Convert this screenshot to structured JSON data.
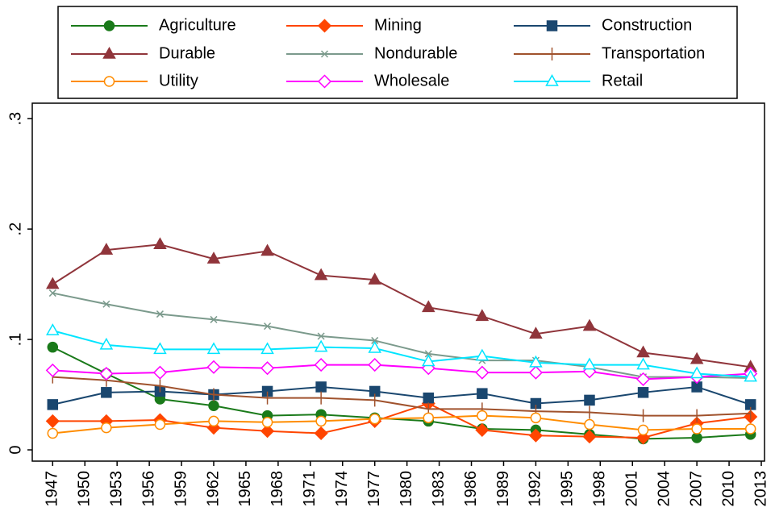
{
  "chart_data": {
    "type": "line",
    "x": [
      1947,
      1952,
      1957,
      1962,
      1967,
      1972,
      1977,
      1982,
      1987,
      1992,
      1997,
      2002,
      2007,
      2012
    ],
    "xlim": [
      1945.1,
      2013.3
    ],
    "xticks": [
      1947,
      1950,
      1953,
      1956,
      1959,
      1962,
      1965,
      1968,
      1971,
      1974,
      1977,
      1980,
      1983,
      1986,
      1989,
      1992,
      1995,
      1998,
      2001,
      2004,
      2007,
      2010,
      2013
    ],
    "ylim": [
      -0.0102,
      0.314
    ],
    "yticks": [
      0,
      {
        "value": 0.1,
        "label": ".1"
      },
      {
        "value": 0.2,
        "label": ".2"
      },
      {
        "value": 0.3,
        "label": ".3"
      }
    ],
    "grid": false,
    "legend": "top",
    "series": [
      {
        "name": "Agriculture",
        "color": "#1a7a1a",
        "marker": "circle",
        "filled": true,
        "values": [
          0.093,
          0.069,
          0.046,
          0.04,
          0.031,
          0.032,
          0.029,
          0.026,
          0.019,
          0.018,
          0.014,
          0.01,
          0.011,
          0.014
        ]
      },
      {
        "name": "Mining",
        "color": "#ff4500",
        "marker": "diamond",
        "filled": true,
        "values": [
          0.026,
          0.026,
          0.027,
          0.02,
          0.017,
          0.015,
          0.026,
          0.042,
          0.018,
          0.013,
          0.012,
          0.011,
          0.024,
          0.03
        ]
      },
      {
        "name": "Construction",
        "color": "#1a476f",
        "marker": "square",
        "filled": true,
        "values": [
          0.041,
          0.052,
          0.053,
          0.05,
          0.053,
          0.057,
          0.053,
          0.047,
          0.051,
          0.042,
          0.045,
          0.052,
          0.057,
          0.041
        ]
      },
      {
        "name": "Durable",
        "color": "#90353b",
        "marker": "triangle",
        "filled": true,
        "values": [
          0.15,
          0.181,
          0.186,
          0.173,
          0.18,
          0.158,
          0.154,
          0.129,
          0.121,
          0.105,
          0.112,
          0.088,
          0.082,
          0.075
        ]
      },
      {
        "name": "Nondurable",
        "color": "#7b9a8c",
        "marker": "x",
        "filled": false,
        "values": [
          0.142,
          0.132,
          0.123,
          0.118,
          0.112,
          0.103,
          0.099,
          0.087,
          0.081,
          0.081,
          0.075,
          0.066,
          0.066,
          0.065
        ]
      },
      {
        "name": "Transportation",
        "color": "#a0522d",
        "marker": "plus",
        "filled": false,
        "values": [
          0.066,
          0.063,
          0.058,
          0.05,
          0.047,
          0.047,
          0.045,
          0.037,
          0.037,
          0.035,
          0.034,
          0.031,
          0.031,
          0.033
        ]
      },
      {
        "name": "Utility",
        "color": "#ff8c00",
        "marker": "circle",
        "filled": false,
        "values": [
          0.015,
          0.02,
          0.023,
          0.026,
          0.025,
          0.026,
          0.028,
          0.029,
          0.031,
          0.029,
          0.023,
          0.018,
          0.019,
          0.019
        ]
      },
      {
        "name": "Wholesale",
        "color": "#ff00ff",
        "marker": "diamond",
        "filled": false,
        "values": [
          0.072,
          0.069,
          0.07,
          0.075,
          0.074,
          0.077,
          0.077,
          0.074,
          0.07,
          0.07,
          0.071,
          0.064,
          0.066,
          0.069
        ]
      },
      {
        "name": "Retail",
        "color": "#00e5ff",
        "marker": "triangle",
        "filled": false,
        "values": [
          0.108,
          0.095,
          0.091,
          0.091,
          0.091,
          0.093,
          0.092,
          0.08,
          0.085,
          0.079,
          0.077,
          0.077,
          0.069,
          0.066
        ]
      }
    ]
  }
}
